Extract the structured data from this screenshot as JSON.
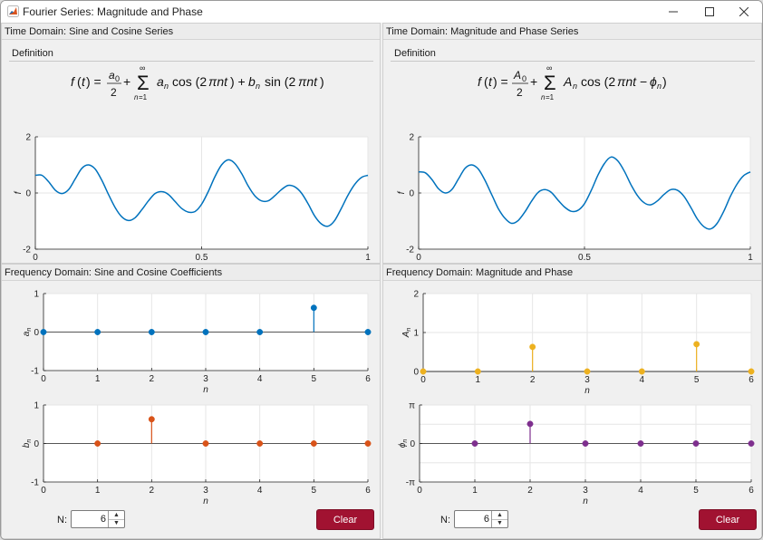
{
  "window": {
    "title": "Fourier Series: Magnitude and Phase"
  },
  "panels": {
    "time_sc": {
      "title": "Time Domain: Sine and Cosine Series",
      "definition_label": "Definition"
    },
    "time_mp": {
      "title": "Time Domain: Magnitude and Phase Series",
      "definition_label": "Definition"
    },
    "freq_sc": {
      "title": "Frequency Domain: Sine and Cosine Coefficients"
    },
    "freq_mp": {
      "title": "Frequency Domain: Magnitude and Phase"
    }
  },
  "controls": {
    "left": {
      "n_label": "N:",
      "n_value": "6",
      "clear_label": "Clear"
    },
    "right": {
      "n_label": "N:",
      "n_value": "6",
      "clear_label": "Clear"
    }
  },
  "colors": {
    "blue": "#0072bd",
    "orange": "#d95319",
    "yellow": "#edb120",
    "purple": "#7e2f8e",
    "clear_button": "#a11231"
  },
  "chart_data": [
    {
      "id": "time_sc",
      "type": "line",
      "xlabel": "t",
      "ylabel": "f",
      "xlim": [
        0,
        1
      ],
      "ylim": [
        -2,
        2
      ],
      "xticks": [
        "0",
        "0.5",
        "1"
      ],
      "yticks": [
        "2",
        "0",
        "-2"
      ],
      "grid": true,
      "series": [
        {
          "color": "#0072bd",
          "x": [
            0,
            0.02,
            0.04,
            0.06,
            0.08,
            0.1,
            0.12,
            0.14,
            0.16,
            0.18,
            0.2,
            0.22,
            0.24,
            0.26,
            0.28,
            0.3,
            0.32,
            0.34,
            0.36,
            0.38,
            0.4,
            0.42,
            0.44,
            0.46,
            0.48,
            0.5,
            0.52,
            0.54,
            0.56,
            0.58,
            0.6,
            0.62,
            0.64,
            0.66,
            0.68,
            0.7,
            0.72,
            0.74,
            0.76,
            0.78,
            0.8,
            0.82,
            0.84,
            0.86,
            0.88,
            0.9,
            0.92,
            0.94,
            0.96,
            0.98,
            1
          ],
          "y": [
            0.63,
            0.63,
            0.4,
            0.1,
            -0.02,
            0.12,
            0.5,
            0.88,
            1.0,
            0.85,
            0.45,
            -0.05,
            -0.52,
            -0.85,
            -0.98,
            -0.88,
            -0.6,
            -0.28,
            -0.02,
            0.05,
            -0.05,
            -0.3,
            -0.55,
            -0.68,
            -0.66,
            -0.4,
            0.05,
            0.58,
            1.0,
            1.18,
            1.05,
            0.7,
            0.25,
            -0.1,
            -0.28,
            -0.28,
            -0.1,
            0.12,
            0.27,
            0.22,
            0.0,
            -0.38,
            -0.82,
            -1.1,
            -1.18,
            -0.98,
            -0.55,
            -0.08,
            0.3,
            0.55,
            0.63
          ]
        }
      ]
    },
    {
      "id": "time_mp",
      "type": "line",
      "xlabel": "t",
      "ylabel": "f",
      "xlim": [
        0,
        1
      ],
      "ylim": [
        -2,
        2
      ],
      "xticks": [
        "0",
        "0.5",
        "1"
      ],
      "yticks": [
        "2",
        "0",
        "-2"
      ],
      "grid": true,
      "series": [
        {
          "color": "#0072bd",
          "x": [
            0,
            0.02,
            0.04,
            0.06,
            0.08,
            0.1,
            0.12,
            0.14,
            0.16,
            0.18,
            0.2,
            0.22,
            0.24,
            0.26,
            0.28,
            0.3,
            0.32,
            0.34,
            0.36,
            0.38,
            0.4,
            0.42,
            0.44,
            0.46,
            0.48,
            0.5,
            0.52,
            0.54,
            0.56,
            0.58,
            0.6,
            0.62,
            0.64,
            0.66,
            0.68,
            0.7,
            0.72,
            0.74,
            0.76,
            0.78,
            0.8,
            0.82,
            0.84,
            0.86,
            0.88,
            0.9,
            0.92,
            0.94,
            0.96,
            0.98,
            1
          ],
          "y": [
            0.75,
            0.72,
            0.48,
            0.15,
            0.0,
            0.12,
            0.5,
            0.88,
            1.0,
            0.85,
            0.45,
            -0.05,
            -0.55,
            -0.9,
            -1.08,
            -0.98,
            -0.68,
            -0.3,
            0.02,
            0.12,
            0.02,
            -0.25,
            -0.5,
            -0.65,
            -0.62,
            -0.38,
            0.08,
            0.62,
            1.05,
            1.28,
            1.15,
            0.78,
            0.3,
            -0.1,
            -0.35,
            -0.42,
            -0.28,
            -0.05,
            0.12,
            0.1,
            -0.12,
            -0.5,
            -0.92,
            -1.2,
            -1.28,
            -1.08,
            -0.65,
            -0.12,
            0.32,
            0.62,
            0.75
          ]
        }
      ]
    },
    {
      "id": "an",
      "type": "stem",
      "xlabel": "n",
      "ylabel": "a_n",
      "xlim": [
        0,
        6
      ],
      "ylim": [
        -1,
        1
      ],
      "xticks": [
        "0",
        "1",
        "2",
        "3",
        "4",
        "5",
        "6"
      ],
      "yticks": [
        "1",
        "0",
        "-1"
      ],
      "grid": true,
      "series": [
        {
          "color": "#0072bd",
          "x": [
            0,
            1,
            2,
            3,
            4,
            5,
            6
          ],
          "y": [
            0,
            0,
            0,
            0,
            0,
            0.63,
            0
          ]
        }
      ]
    },
    {
      "id": "bn",
      "type": "stem",
      "xlabel": "n",
      "ylabel": "b_n",
      "xlim": [
        0,
        6
      ],
      "ylim": [
        -1,
        1
      ],
      "xticks": [
        "0",
        "1",
        "2",
        "3",
        "4",
        "5",
        "6"
      ],
      "yticks": [
        "1",
        "0",
        "-1"
      ],
      "grid": true,
      "series": [
        {
          "color": "#d95319",
          "x": [
            1,
            2,
            3,
            4,
            5,
            6
          ],
          "y": [
            0,
            0.63,
            0,
            0,
            0,
            0
          ]
        }
      ]
    },
    {
      "id": "An",
      "type": "stem",
      "xlabel": "n",
      "ylabel": "A_n",
      "xlim": [
        0,
        6
      ],
      "ylim": [
        0,
        2
      ],
      "xticks": [
        "0",
        "1",
        "2",
        "3",
        "4",
        "5",
        "6"
      ],
      "yticks": [
        "2",
        "1",
        "0"
      ],
      "grid": true,
      "series": [
        {
          "color": "#edb120",
          "x": [
            0,
            1,
            2,
            3,
            4,
            5,
            6
          ],
          "y": [
            0,
            0,
            0.63,
            0,
            0,
            0.7,
            0
          ]
        }
      ]
    },
    {
      "id": "phin",
      "type": "stem",
      "xlabel": "n",
      "ylabel": "ϕ_n",
      "xlim": [
        0,
        6
      ],
      "ylim": [
        -3.1416,
        3.1416
      ],
      "xticks": [
        "0",
        "1",
        "2",
        "3",
        "4",
        "5",
        "6"
      ],
      "yticks": [
        "π",
        "0",
        "-π"
      ],
      "grid": true,
      "series": [
        {
          "color": "#7e2f8e",
          "x": [
            1,
            2,
            3,
            4,
            5,
            6
          ],
          "y": [
            0,
            1.6,
            0,
            0,
            0,
            0
          ]
        }
      ]
    }
  ]
}
